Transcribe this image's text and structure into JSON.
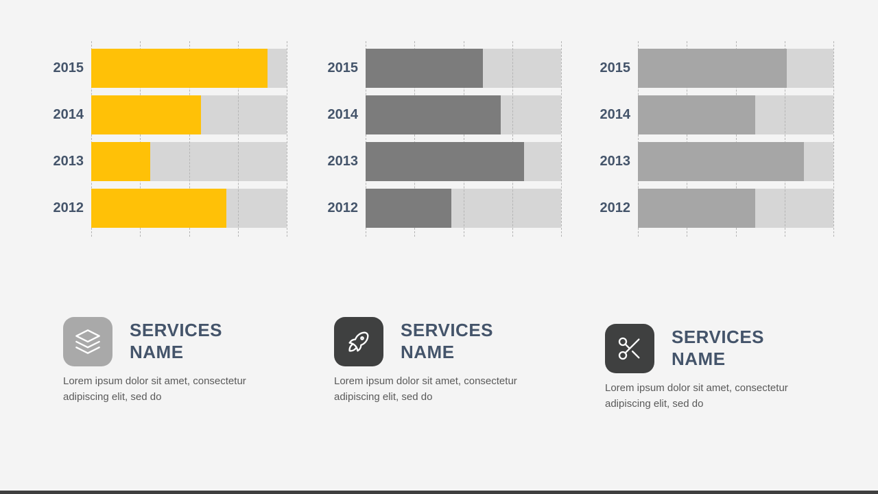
{
  "page": {
    "background": "#f4f4f4",
    "footer_color": "#3f3f3f"
  },
  "chart_data": [
    {
      "type": "bar",
      "orientation": "horizontal",
      "categories": [
        "2015",
        "2014",
        "2013",
        "2012"
      ],
      "values": [
        90,
        56,
        30,
        69
      ],
      "value_unit": "percent-of-track",
      "xlim": [
        0,
        100
      ],
      "bar_color": "#ffc107",
      "track_color": "#d6d6d6",
      "grid": "dashed vertical lines at quarters",
      "legend": "none"
    },
    {
      "type": "bar",
      "orientation": "horizontal",
      "categories": [
        "2015",
        "2014",
        "2013",
        "2012"
      ],
      "values": [
        60,
        69,
        81,
        44
      ],
      "value_unit": "percent-of-track",
      "xlim": [
        0,
        100
      ],
      "bar_color": "#7c7c7c",
      "track_color": "#d6d6d6",
      "grid": "dashed vertical lines at quarters",
      "legend": "none"
    },
    {
      "type": "bar",
      "orientation": "horizontal",
      "categories": [
        "2015",
        "2014",
        "2013",
        "2012"
      ],
      "values": [
        76,
        60,
        85,
        60
      ],
      "value_unit": "percent-of-track",
      "xlim": [
        0,
        100
      ],
      "bar_color": "#a6a6a6",
      "track_color": "#d6d6d6",
      "grid": "dashed vertical lines at quarters",
      "legend": "none"
    }
  ],
  "services": [
    {
      "icon": "layers-icon",
      "icon_bg": "#a9a9a9",
      "title": "SERVICES NAME",
      "description": "Lorem ipsum dolor sit amet, consectetur adipiscing elit, sed do"
    },
    {
      "icon": "rocket-icon",
      "icon_bg": "#3f4040",
      "title": "SERVICES NAME",
      "description": "Lorem ipsum dolor sit amet, consectetur adipiscing elit, sed do"
    },
    {
      "icon": "scissors-icon",
      "icon_bg": "#3f4040",
      "title": "SERVICES NAME",
      "description": "Lorem ipsum dolor sit amet, consectetur adipiscing elit, sed do"
    }
  ],
  "text_colors": {
    "heading": "#44546a",
    "year_label": "#44546a",
    "body": "#595959"
  }
}
